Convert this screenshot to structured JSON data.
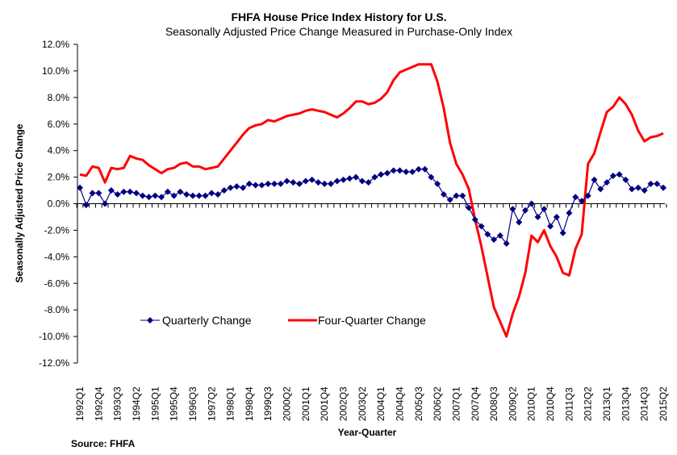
{
  "chart_data": {
    "type": "line",
    "title": "FHFA House Price Index History for U.S.",
    "subtitle": "Seasonally Adjusted Price Change Measured in Purchase-Only Index",
    "xlabel": "Year-Quarter",
    "ylabel": "Seasonally Adjusted Price Change",
    "ylim": [
      -12,
      12
    ],
    "ytick_step": 2,
    "ytick_labels": [
      "12.0%",
      "10.0%",
      "8.0%",
      "6.0%",
      "4.0%",
      "2.0%",
      "0.0%",
      "-2.0%",
      "-4.0%",
      "-6.0%",
      "-8.0%",
      "-10.0%",
      "-12.0%"
    ],
    "ytick_values": [
      12,
      10,
      8,
      6,
      4,
      2,
      0,
      -2,
      -4,
      -6,
      -8,
      -10,
      -12
    ],
    "grid": false,
    "legend_position": "bottom-left-inside",
    "x_start": "1992Q1",
    "x_end": "2015Q2",
    "xtick_labels": [
      "1992Q1",
      "1992Q4",
      "1993Q3",
      "1994Q2",
      "1995Q1",
      "1995Q4",
      "1996Q3",
      "1997Q2",
      "1998Q1",
      "1998Q4",
      "1999Q3",
      "2000Q2",
      "2001Q1",
      "2001Q4",
      "2002Q3",
      "2003Q2",
      "2004Q1",
      "2004Q4",
      "2005Q3",
      "2006Q2",
      "2007Q1",
      "2007Q4",
      "2008Q3",
      "2009Q2",
      "2010Q1",
      "2010Q4",
      "2011Q3",
      "2012Q2",
      "2013Q1",
      "2013Q4",
      "2014Q3",
      "2015Q2"
    ],
    "series": [
      {
        "name": "Quarterly Change",
        "color": "#000080",
        "marker": "diamond",
        "values": [
          1.2,
          -0.1,
          0.8,
          0.8,
          0.0,
          1.0,
          0.7,
          0.9,
          0.9,
          0.8,
          0.6,
          0.5,
          0.6,
          0.5,
          0.9,
          0.6,
          0.9,
          0.7,
          0.6,
          0.6,
          0.6,
          0.8,
          0.7,
          1.0,
          1.2,
          1.3,
          1.2,
          1.5,
          1.4,
          1.4,
          1.5,
          1.5,
          1.5,
          1.7,
          1.6,
          1.5,
          1.7,
          1.8,
          1.6,
          1.5,
          1.5,
          1.7,
          1.8,
          1.9,
          2.0,
          1.7,
          1.6,
          2.0,
          2.2,
          2.3,
          2.5,
          2.5,
          2.4,
          2.4,
          2.6,
          2.6,
          2.0,
          1.5,
          0.7,
          0.3,
          0.6,
          0.6,
          -0.3,
          -1.2,
          -1.7,
          -2.3,
          -2.7,
          -2.4,
          -3.0,
          -0.4,
          -1.4,
          -0.5,
          0.0,
          -1.0,
          -0.4,
          -1.7,
          -1.0,
          -2.2,
          -0.7,
          0.5,
          0.2,
          0.6,
          1.8,
          1.1,
          1.6,
          2.1,
          2.2,
          1.8,
          1.1,
          1.2,
          1.0,
          1.5,
          1.5,
          1.2
        ]
      },
      {
        "name": "Four-Quarter Change",
        "color": "#ff0000",
        "marker": "none",
        "values": [
          2.2,
          2.1,
          2.8,
          2.7,
          1.6,
          2.7,
          2.6,
          2.7,
          3.6,
          3.4,
          3.3,
          2.9,
          2.6,
          2.3,
          2.6,
          2.7,
          3.0,
          3.1,
          2.8,
          2.8,
          2.6,
          2.7,
          2.8,
          3.4,
          4.0,
          4.6,
          5.2,
          5.7,
          5.9,
          6.0,
          6.3,
          6.2,
          6.4,
          6.6,
          6.7,
          6.8,
          7.0,
          7.1,
          7.0,
          6.9,
          6.7,
          6.5,
          6.8,
          7.2,
          7.7,
          7.7,
          7.5,
          7.6,
          7.9,
          8.4,
          9.3,
          9.9,
          10.1,
          10.3,
          10.5,
          10.5,
          10.5,
          9.2,
          7.2,
          4.6,
          3.0,
          2.2,
          1.1,
          -1.2,
          -3.2,
          -5.5,
          -7.8,
          -8.9,
          -10.0,
          -8.3,
          -7.0,
          -5.2,
          -2.4,
          -2.9,
          -2.0,
          -3.2,
          -4.0,
          -5.2,
          -5.4,
          -3.4,
          -2.3,
          3.0,
          3.8,
          5.4,
          6.9,
          7.3,
          8.0,
          7.5,
          6.7,
          5.5,
          4.7,
          5.0,
          5.1,
          5.3
        ]
      }
    ],
    "source": "Source:  FHFA"
  }
}
